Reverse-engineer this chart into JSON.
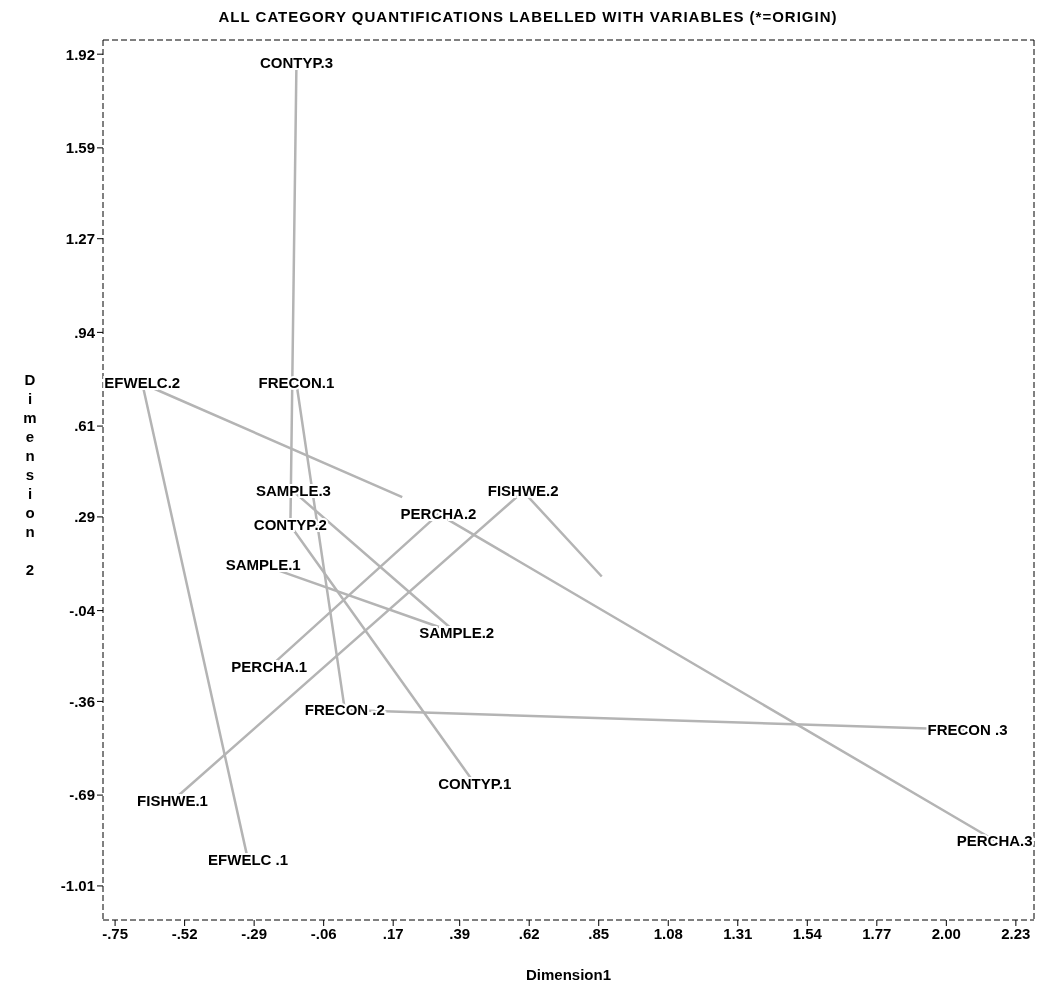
{
  "chart_data": {
    "type": "line",
    "title": "ALL CATEGORY QUANTIFICATIONS LABELLED WITH VARIABLES   (*=ORIGIN)",
    "xlabel": "Dimension1",
    "ylabel": "Dimension 2",
    "xlim": [
      -0.79,
      2.29
    ],
    "ylim": [
      -1.13,
      1.97
    ],
    "xticks": [
      {
        "value": -0.75,
        "label": "-.75"
      },
      {
        "value": -0.52,
        "label": "-.52"
      },
      {
        "value": -0.29,
        "label": "-.29"
      },
      {
        "value": -0.06,
        "label": "-.06"
      },
      {
        "value": 0.17,
        "label": ".17"
      },
      {
        "value": 0.39,
        "label": ".39"
      },
      {
        "value": 0.62,
        "label": ".62"
      },
      {
        "value": 0.85,
        "label": ".85"
      },
      {
        "value": 1.08,
        "label": "1.08"
      },
      {
        "value": 1.31,
        "label": "1.31"
      },
      {
        "value": 1.54,
        "label": "1.54"
      },
      {
        "value": 1.77,
        "label": "1.77"
      },
      {
        "value": 2.0,
        "label": "2.00"
      },
      {
        "value": 2.23,
        "label": "2.23"
      }
    ],
    "yticks": [
      {
        "value": -1.01,
        "label": "-1.01"
      },
      {
        "value": -0.69,
        "label": "-.69"
      },
      {
        "value": -0.36,
        "label": "-.36"
      },
      {
        "value": -0.04,
        "label": "-.04"
      },
      {
        "value": 0.29,
        "label": ".29"
      },
      {
        "value": 0.61,
        "label": ".61"
      },
      {
        "value": 0.94,
        "label": ".94"
      },
      1.27,
      1.59,
      1.92
    ],
    "series": [
      {
        "color": "#b4b4b4",
        "x": [
          0.44,
          -0.17,
          -0.15
        ],
        "values": [
          -0.65,
          0.26,
          1.89
        ]
      },
      {
        "color": "#b4b4b4",
        "x": [
          -0.15,
          0.01,
          2.07
        ],
        "values": [
          0.76,
          -0.39,
          -0.46
        ]
      },
      {
        "color": "#b4b4b4",
        "x": [
          -0.31,
          -0.66,
          0.2
        ],
        "values": [
          -0.92,
          0.76,
          0.36
        ]
      },
      {
        "color": "#b4b4b4",
        "x": [
          -0.56,
          0.6,
          0.86
        ],
        "values": [
          -0.71,
          0.38,
          0.08
        ]
      },
      {
        "color": "#b4b4b4",
        "x": [
          -0.24,
          0.32,
          2.16
        ],
        "values": [
          -0.24,
          0.3,
          -0.85
        ]
      },
      {
        "color": "#b4b4b4",
        "x": [
          -0.26,
          0.38,
          -0.16
        ],
        "values": [
          0.12,
          -0.12,
          0.38
        ]
      }
    ],
    "annotations": [
      {
        "text": "CONTYP.1",
        "x": 0.44,
        "y": -0.65
      },
      {
        "text": "CONTYP.2",
        "x": -0.17,
        "y": 0.26
      },
      {
        "text": "CONTYP.3",
        "x": -0.15,
        "y": 1.89
      },
      {
        "text": "FRECON.1",
        "x": -0.15,
        "y": 0.76
      },
      {
        "text": "FRECON .2",
        "x": 0.01,
        "y": -0.39
      },
      {
        "text": "FRECON .3",
        "x": 2.07,
        "y": -0.46
      },
      {
        "text": "EFWELC .1",
        "x": -0.31,
        "y": -0.92
      },
      {
        "text": "EFWELC.2",
        "x": -0.66,
        "y": 0.76
      },
      {
        "text": "FISHWE.1",
        "x": -0.56,
        "y": -0.71
      },
      {
        "text": "FISHWE.2",
        "x": 0.6,
        "y": 0.38
      },
      {
        "text": "PERCHA.1",
        "x": -0.24,
        "y": -0.24
      },
      {
        "text": "PERCHA.2",
        "x": 0.32,
        "y": 0.3
      },
      {
        "text": "PERCHA.3",
        "x": 2.16,
        "y": -0.85
      },
      {
        "text": "SAMPLE.1",
        "x": -0.26,
        "y": 0.12
      },
      {
        "text": "SAMPLE.2",
        "x": 0.38,
        "y": -0.12
      },
      {
        "text": "SAMPLE.3",
        "x": -0.16,
        "y": 0.38
      }
    ]
  }
}
